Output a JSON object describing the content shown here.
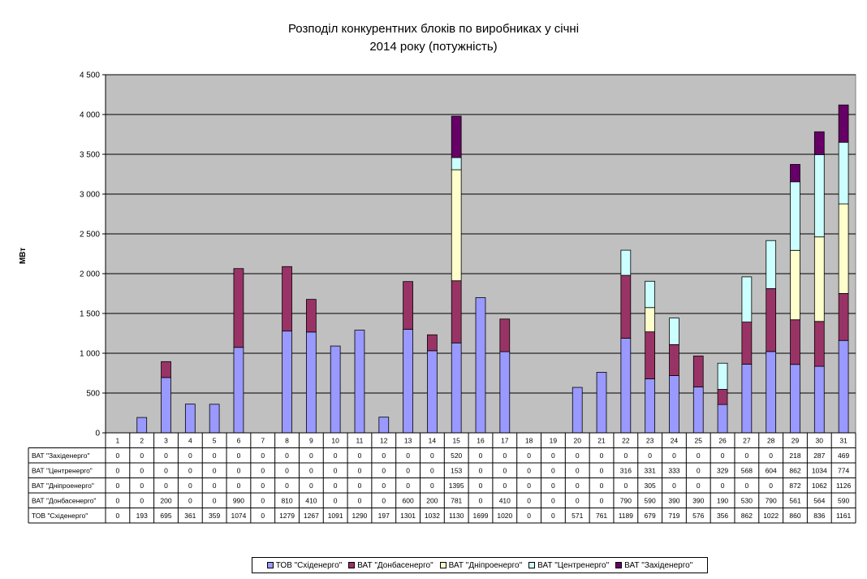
{
  "chart_data": {
    "type": "bar",
    "stacked": true,
    "title_lines": [
      "Розподіл конкурентних блоків по виробниках у січні",
      "2014 року (потужність)"
    ],
    "ylabel": "МВт",
    "ylim": [
      0,
      4500
    ],
    "yticks": [
      "0",
      "500",
      "1 000",
      "1 500",
      "2 000",
      "2 500",
      "3 000",
      "3 500",
      "4 000",
      "4 500"
    ],
    "grid": true,
    "legend_position": "bottom",
    "categories": [
      "1",
      "2",
      "3",
      "4",
      "5",
      "6",
      "7",
      "8",
      "9",
      "10",
      "11",
      "12",
      "13",
      "14",
      "15",
      "16",
      "17",
      "18",
      "19",
      "20",
      "21",
      "22",
      "23",
      "24",
      "25",
      "26",
      "27",
      "28",
      "29",
      "30",
      "31"
    ],
    "series": [
      {
        "name": "ТОВ \"Східенерго\"",
        "color": "#9999ff",
        "values": [
          0,
          193,
          695,
          361,
          359,
          1074,
          0,
          1279,
          1267,
          1091,
          1290,
          197,
          1301,
          1032,
          1130,
          1699,
          1020,
          0,
          0,
          571,
          761,
          1189,
          679,
          719,
          576,
          356,
          862,
          1022,
          860,
          836,
          1161
        ]
      },
      {
        "name": "ВАТ \"Донбасенерго\"",
        "color": "#993366",
        "values": [
          0,
          0,
          200,
          0,
          0,
          990,
          0,
          810,
          410,
          0,
          0,
          0,
          600,
          200,
          781,
          0,
          410,
          0,
          0,
          0,
          0,
          790,
          590,
          390,
          390,
          190,
          530,
          790,
          561,
          564,
          590
        ]
      },
      {
        "name": "ВАТ \"Дніпроенерго\"",
        "color": "#ffffcc",
        "values": [
          0,
          0,
          0,
          0,
          0,
          0,
          0,
          0,
          0,
          0,
          0,
          0,
          0,
          0,
          1395,
          0,
          0,
          0,
          0,
          0,
          0,
          0,
          305,
          0,
          0,
          0,
          0,
          0,
          872,
          1062,
          1126
        ]
      },
      {
        "name": "ВАТ \"Центренерго\"",
        "color": "#ccffff",
        "values": [
          0,
          0,
          0,
          0,
          0,
          0,
          0,
          0,
          0,
          0,
          0,
          0,
          0,
          0,
          153,
          0,
          0,
          0,
          0,
          0,
          0,
          316,
          331,
          333,
          0,
          329,
          568,
          604,
          862,
          1034,
          774
        ]
      },
      {
        "name": "ВАТ \"Західенерго\"",
        "color": "#660066",
        "values": [
          0,
          0,
          0,
          0,
          0,
          0,
          0,
          0,
          0,
          0,
          0,
          0,
          0,
          0,
          520,
          0,
          0,
          0,
          0,
          0,
          0,
          0,
          0,
          0,
          0,
          0,
          0,
          0,
          218,
          287,
          469
        ]
      }
    ],
    "table_row_order": [
      4,
      3,
      2,
      1,
      0
    ],
    "plot_background": "#c0c0c0"
  }
}
